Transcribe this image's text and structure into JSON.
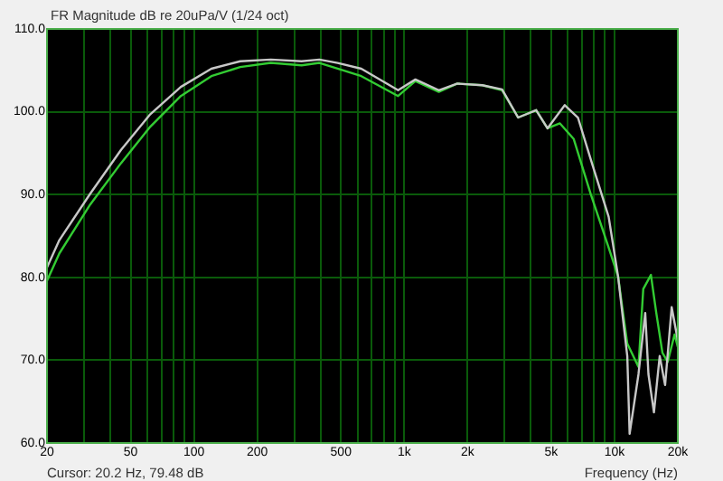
{
  "chart_data": {
    "type": "line",
    "title": "FR Magnitude dB re 20uPa/V (1/24 oct)",
    "xlabel": "Frequency (Hz)",
    "annotations": [
      "Cursor: 20.2 Hz, 79.48 dB"
    ],
    "log": "x",
    "grid": true,
    "legend": false,
    "marker": "none",
    "line_style": "solid",
    "xlim": [
      20,
      20000
    ],
    "ylim": [
      60,
      110
    ],
    "xticks": [
      20,
      {
        "value": 30,
        "label": null
      },
      {
        "value": 40,
        "label": null
      },
      50,
      {
        "value": 60,
        "label": null
      },
      {
        "value": 70,
        "label": null
      },
      {
        "value": 80,
        "label": null
      },
      {
        "value": 90,
        "label": null
      },
      100,
      200,
      {
        "value": 300,
        "label": null
      },
      {
        "value": 400,
        "label": null
      },
      500,
      {
        "value": 600,
        "label": null
      },
      {
        "value": 700,
        "label": null
      },
      {
        "value": 800,
        "label": null
      },
      {
        "value": 900,
        "label": null
      },
      {
        "value": 1000,
        "label": "1k"
      },
      {
        "value": 2000,
        "label": "2k"
      },
      {
        "value": 3000,
        "label": null
      },
      {
        "value": 4000,
        "label": null
      },
      {
        "value": 5000,
        "label": "5k"
      },
      {
        "value": 6000,
        "label": null
      },
      {
        "value": 7000,
        "label": null
      },
      {
        "value": 8000,
        "label": null
      },
      {
        "value": 9000,
        "label": null
      },
      {
        "value": 10000,
        "label": "10k"
      },
      {
        "value": 20000,
        "label": "20k"
      }
    ],
    "yticks": [
      {
        "value": 60,
        "label": "60.0"
      },
      {
        "value": 70,
        "label": "70.0"
      },
      {
        "value": 80,
        "label": "80.0"
      },
      {
        "value": 90,
        "label": "90.0"
      },
      {
        "value": 100,
        "label": "100.0"
      },
      {
        "value": 110,
        "label": "110.0"
      }
    ],
    "series": [
      {
        "color": "#c8c8c8",
        "x": [
          20,
          22.9,
          32.1,
          45,
          62,
          86.6,
          121,
          166,
          232,
          325,
          395,
          482,
          625,
          935,
          1130,
          1460,
          1790,
          2350,
          2920,
          3480,
          4240,
          4800,
          5800,
          6700,
          7700,
          9380,
          10400,
          11500,
          11800,
          13000,
          14000,
          14500,
          15400,
          16400,
          17400,
          18700,
          20000
        ],
        "values": [
          81.2,
          84.5,
          90.1,
          95.4,
          99.7,
          103.0,
          105.2,
          106.1,
          106.3,
          106.1,
          106.3,
          105.9,
          105.2,
          102.6,
          103.9,
          102.6,
          103.4,
          103.2,
          102.7,
          99.3,
          100.2,
          98.0,
          100.8,
          99.3,
          94.3,
          87.3,
          80.1,
          70.5,
          61.1,
          68.3,
          75.7,
          68.3,
          63.7,
          70.5,
          67.0,
          76.4,
          72.4
        ]
      },
      {
        "color": "#33cc33",
        "x": [
          20,
          22.9,
          32.1,
          45,
          62,
          86.6,
          121,
          166,
          232,
          325,
          395,
          482,
          625,
          935,
          1130,
          1460,
          1790,
          2350,
          2920,
          3480,
          4240,
          4800,
          5500,
          6400,
          7700,
          9380,
          10400,
          11500,
          13000,
          13700,
          14900,
          15800,
          16900,
          17900,
          19300,
          20000
        ],
        "values": [
          79.6,
          82.9,
          88.8,
          93.8,
          98.2,
          101.9,
          104.3,
          105.4,
          105.9,
          105.6,
          105.9,
          105.2,
          104.3,
          101.9,
          103.7,
          102.4,
          103.4,
          103.2,
          102.6,
          99.3,
          100.2,
          98.0,
          98.6,
          96.7,
          90.1,
          83.6,
          80.1,
          72.0,
          69.2,
          78.6,
          80.3,
          75.7,
          70.9,
          69.8,
          73.1,
          71.6
        ]
      }
    ]
  }
}
